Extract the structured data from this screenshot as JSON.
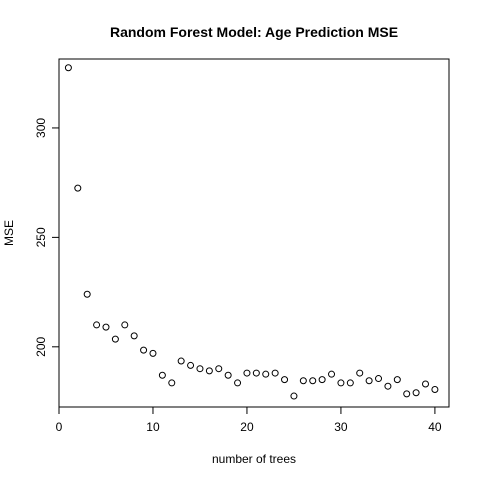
{
  "chart_data": {
    "type": "scatter",
    "title": "Random Forest Model: Age Prediction MSE",
    "xlabel": "number of trees",
    "ylabel": "MSE",
    "xlim": [
      0,
      41.5
    ],
    "ylim": [
      172.5,
      331.5
    ],
    "x_ticks": [
      0,
      10,
      20,
      30,
      40
    ],
    "y_ticks": [
      200,
      250,
      300
    ],
    "marker": "open-circle",
    "grid": false,
    "series": [
      {
        "x": [
          1,
          2,
          3,
          4,
          5,
          6,
          7,
          8,
          9,
          10,
          11,
          12,
          13,
          14,
          15,
          16,
          17,
          18,
          19,
          20,
          21,
          22,
          23,
          24,
          25,
          26,
          27,
          28,
          29,
          30,
          31,
          32,
          33,
          34,
          35,
          36,
          37,
          38,
          39,
          40
        ],
        "y": [
          327.5,
          272.5,
          224,
          210,
          209,
          203.5,
          210,
          205,
          198.5,
          197,
          187,
          183.5,
          193.5,
          191.5,
          190,
          189,
          190,
          187,
          183.5,
          188,
          188,
          187.5,
          188,
          185,
          177.5,
          184.5,
          184.5,
          185,
          187.5,
          183.5,
          183.5,
          188,
          184.5,
          185.5,
          182,
          185,
          178.5,
          179,
          183,
          180.5
        ]
      }
    ]
  }
}
